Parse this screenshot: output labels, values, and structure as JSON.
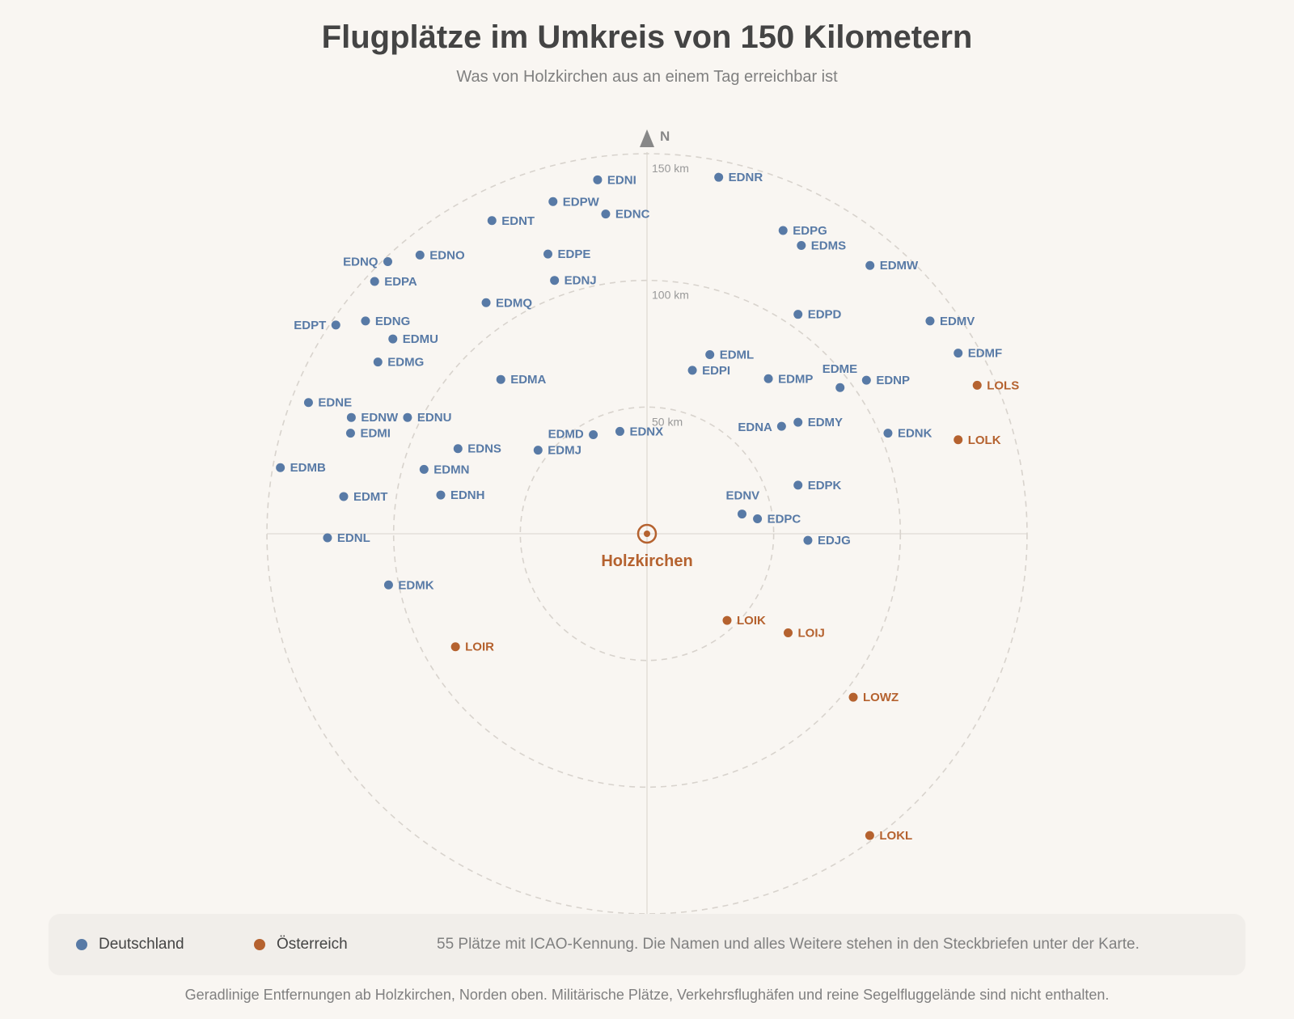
{
  "title": "Flugplätze im Umkreis von 150 Kilometern",
  "subtitle": "Was von Holzkirchen aus an einem Tag erreichbar ist",
  "map": {
    "north_label": "N",
    "center_name": "Holzkirchen",
    "rings": [
      {
        "radius_km": 50,
        "label": "50 km"
      },
      {
        "radius_km": 100,
        "label": "100 km"
      },
      {
        "radius_km": 150,
        "label": "150 km"
      }
    ],
    "colors": {
      "Deutschland": "#587aa6",
      "Österreich": "#b5622f",
      "center": "#b5622f"
    },
    "airports": [
      {
        "code": "EDNI",
        "country": "Deutschland",
        "east_km": -19.5,
        "north_km": 139.7
      },
      {
        "code": "EDPW",
        "country": "Deutschland",
        "east_km": -37.1,
        "north_km": 131.1
      },
      {
        "code": "EDNC",
        "country": "Deutschland",
        "east_km": -16.3,
        "north_km": 126.2
      },
      {
        "code": "EDNR",
        "country": "Deutschland",
        "east_km": 28.3,
        "north_km": 140.7
      },
      {
        "code": "EDNT",
        "country": "Deutschland",
        "east_km": -61.2,
        "north_km": 123.6
      },
      {
        "code": "EDPG",
        "country": "Deutschland",
        "east_km": 53.7,
        "north_km": 119.7
      },
      {
        "code": "EDMS",
        "country": "Deutschland",
        "east_km": 60.9,
        "north_km": 113.8
      },
      {
        "code": "EDNQ",
        "country": "Deutschland",
        "east_km": -102.3,
        "north_km": 107.4
      },
      {
        "code": "EDNO",
        "country": "Deutschland",
        "east_km": -89.6,
        "north_km": 110.0
      },
      {
        "code": "EDPE",
        "country": "Deutschland",
        "east_km": -39.1,
        "north_km": 110.4
      },
      {
        "code": "EDMW",
        "country": "Deutschland",
        "east_km": 88.0,
        "north_km": 105.9
      },
      {
        "code": "EDPA",
        "country": "Deutschland",
        "east_km": -107.5,
        "north_km": 99.6
      },
      {
        "code": "EDNJ",
        "country": "Deutschland",
        "east_km": -36.5,
        "north_km": 100.0
      },
      {
        "code": "EDMQ",
        "country": "Deutschland",
        "east_km": -63.5,
        "north_km": 91.2
      },
      {
        "code": "EDPD",
        "country": "Deutschland",
        "east_km": 59.6,
        "north_km": 86.6
      },
      {
        "code": "EDPT",
        "country": "Deutschland",
        "east_km": -122.8,
        "north_km": 82.4
      },
      {
        "code": "EDNG",
        "country": "Deutschland",
        "east_km": -111.1,
        "north_km": 84.0
      },
      {
        "code": "EDMV",
        "country": "Deutschland",
        "east_km": 111.7,
        "north_km": 84.0
      },
      {
        "code": "EDMU",
        "country": "Deutschland",
        "east_km": -100.3,
        "north_km": 76.9
      },
      {
        "code": "EDMF",
        "country": "Deutschland",
        "east_km": 122.8,
        "north_km": 71.3
      },
      {
        "code": "EDMG",
        "country": "Deutschland",
        "east_km": -106.2,
        "north_km": 67.8
      },
      {
        "code": "EDML",
        "country": "Deutschland",
        "east_km": 24.8,
        "north_km": 70.7
      },
      {
        "code": "EDPI",
        "country": "Deutschland",
        "east_km": 17.9,
        "north_km": 64.5
      },
      {
        "code": "EDMA",
        "country": "Deutschland",
        "east_km": -57.7,
        "north_km": 60.9
      },
      {
        "code": "EDMP",
        "country": "Deutschland",
        "east_km": 47.9,
        "north_km": 61.2
      },
      {
        "code": "EDME",
        "country": "Deutschland",
        "east_km": 76.2,
        "north_km": 57.7
      },
      {
        "code": "EDNP",
        "country": "Deutschland",
        "east_km": 86.6,
        "north_km": 60.6
      },
      {
        "code": "EDNE",
        "country": "Deutschland",
        "east_km": -133.6,
        "north_km": 51.8
      },
      {
        "code": "EDNW",
        "country": "Deutschland",
        "east_km": -116.7,
        "north_km": 45.9
      },
      {
        "code": "EDNU",
        "country": "Deutschland",
        "east_km": -94.5,
        "north_km": 45.9
      },
      {
        "code": "EDNA",
        "country": "Deutschland",
        "east_km": 53.1,
        "north_km": 42.4
      },
      {
        "code": "EDMY",
        "country": "Deutschland",
        "east_km": 59.6,
        "north_km": 44.0
      },
      {
        "code": "EDMI",
        "country": "Deutschland",
        "east_km": -117.0,
        "north_km": 39.7
      },
      {
        "code": "EDNK",
        "country": "Deutschland",
        "east_km": 95.1,
        "north_km": 39.7
      },
      {
        "code": "EDMD",
        "country": "Deutschland",
        "east_km": -21.2,
        "north_km": 39.1
      },
      {
        "code": "EDNX",
        "country": "Deutschland",
        "east_km": -10.7,
        "north_km": 40.4
      },
      {
        "code": "EDNS",
        "country": "Deutschland",
        "east_km": -74.6,
        "north_km": 33.6
      },
      {
        "code": "EDMJ",
        "country": "Deutschland",
        "east_km": -43.0,
        "north_km": 33.0
      },
      {
        "code": "EDMB",
        "country": "Deutschland",
        "east_km": -144.7,
        "north_km": 26.1
      },
      {
        "code": "EDMN",
        "country": "Deutschland",
        "east_km": -88.0,
        "north_km": 25.4
      },
      {
        "code": "EDPK",
        "country": "Deutschland",
        "east_km": 59.6,
        "north_km": 19.2
      },
      {
        "code": "EDMT",
        "country": "Deutschland",
        "east_km": -119.7,
        "north_km": 14.7
      },
      {
        "code": "EDNH",
        "country": "Deutschland",
        "east_km": -81.4,
        "north_km": 15.3
      },
      {
        "code": "EDNV",
        "country": "Deutschland",
        "east_km": 37.5,
        "north_km": 7.8
      },
      {
        "code": "EDPC",
        "country": "Deutschland",
        "east_km": 43.6,
        "north_km": 5.9
      },
      {
        "code": "EDNL",
        "country": "Deutschland",
        "east_km": -126.1,
        "north_km": -1.6
      },
      {
        "code": "EDJG",
        "country": "Deutschland",
        "east_km": 63.5,
        "north_km": -2.6
      },
      {
        "code": "EDMK",
        "country": "Deutschland",
        "east_km": -102.0,
        "north_km": -20.2
      },
      {
        "code": "LOIK",
        "country": "Österreich",
        "east_km": 31.6,
        "north_km": -34.2
      },
      {
        "code": "LOIJ",
        "country": "Österreich",
        "east_km": 55.7,
        "north_km": -39.1
      },
      {
        "code": "LOIR",
        "country": "Österreich",
        "east_km": -75.6,
        "north_km": -44.6
      },
      {
        "code": "LOLS",
        "country": "Österreich",
        "east_km": 130.3,
        "north_km": 58.6
      },
      {
        "code": "LOLK",
        "country": "Österreich",
        "east_km": 122.8,
        "north_km": 37.1
      },
      {
        "code": "LOWZ",
        "country": "Österreich",
        "east_km": 81.4,
        "north_km": -64.5
      },
      {
        "code": "LOKL",
        "country": "Österreich",
        "east_km": 87.9,
        "north_km": -119.1
      }
    ]
  },
  "legend": {
    "items": [
      {
        "label": "Deutschland",
        "color": "#587aa6"
      },
      {
        "label": "Österreich",
        "color": "#b5622f"
      }
    ],
    "note": "55 Plätze mit ICAO-Kennung. Die Namen und alles Weitere stehen in den Steckbriefen unter der Karte."
  },
  "footnote": "Geradlinige Entfernungen ab Holzkirchen, Norden oben. Militärische Plätze, Verkehrsflughäfen und reine Segelfluggelände sind nicht enthalten."
}
